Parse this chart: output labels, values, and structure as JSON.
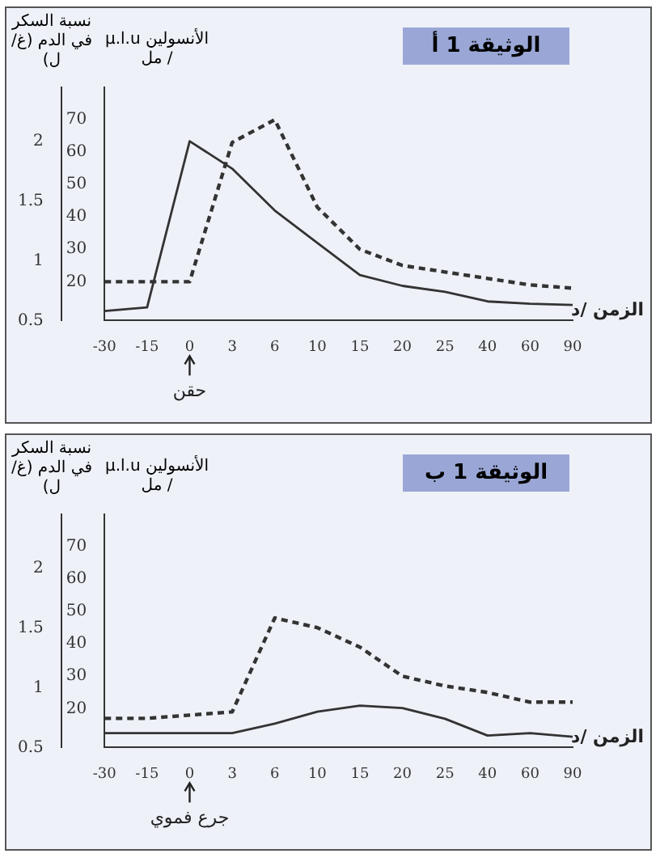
{
  "chart_data": [
    {
      "type": "line",
      "title": "الوثيقة 1 أ",
      "xlabel": "الزمن /د",
      "ylabel": "نسبة السكر في الدم (غ/ل)",
      "y2label": "الأنسولين µ.l.u / مل",
      "categories": [
        "-30",
        "-15",
        "0",
        "3",
        "6",
        "10",
        "15",
        "20",
        "25",
        "40",
        "60",
        "90"
      ],
      "series": [
        {
          "color": "#333333",
          "line_style": "solid",
          "values": [
            0.58,
            0.61,
            2.0,
            1.77,
            1.42,
            1.15,
            0.88,
            0.79,
            0.74,
            0.66,
            0.64,
            0.63
          ]
        },
        {
          "color": "#333333",
          "line_style": "dashed",
          "axis": "y2",
          "values": [
            20,
            20,
            20,
            63,
            70,
            43,
            30,
            25,
            23,
            21,
            19,
            18
          ]
        }
      ],
      "ylim": [
        0.5,
        2.45
      ],
      "yticks": [
        0.5,
        1,
        1.5,
        2
      ],
      "y2lim": [
        8,
        80
      ],
      "y2ticks": [
        20,
        30,
        40,
        50,
        60,
        70
      ],
      "annotations": [
        {
          "text": "حقن",
          "x": "0"
        }
      ],
      "grid": false,
      "legend": false,
      "marker": "none"
    },
    {
      "type": "line",
      "title": "الوثيقة 1 ب",
      "xlabel": "الزمن /د",
      "ylabel": "نسبة السكر في الدم (غ/ل)",
      "y2label": "الأنسولين µ.l.u / مل",
      "categories": [
        "-30",
        "-15",
        "0",
        "3",
        "6",
        "10",
        "15",
        "20",
        "25",
        "40",
        "60",
        "90"
      ],
      "series": [
        {
          "color": "#333333",
          "line_style": "solid",
          "values": [
            0.62,
            0.62,
            0.62,
            0.62,
            0.7,
            0.8,
            0.85,
            0.83,
            0.74,
            0.6,
            0.62,
            0.59
          ]
        },
        {
          "color": "#333333",
          "line_style": "dashed",
          "axis": "y2",
          "values": [
            17,
            17,
            18,
            19,
            48,
            45,
            39,
            30,
            27,
            25,
            22,
            22
          ]
        }
      ],
      "ylim": [
        0.5,
        2.45
      ],
      "yticks": [
        0.5,
        1,
        1.5,
        2
      ],
      "y2lim": [
        8,
        80
      ],
      "y2ticks": [
        20,
        30,
        40,
        50,
        60,
        70
      ],
      "annotations": [
        {
          "text": "جرع فموي",
          "x": "0"
        }
      ],
      "grid": false,
      "legend": false,
      "marker": "none"
    }
  ]
}
